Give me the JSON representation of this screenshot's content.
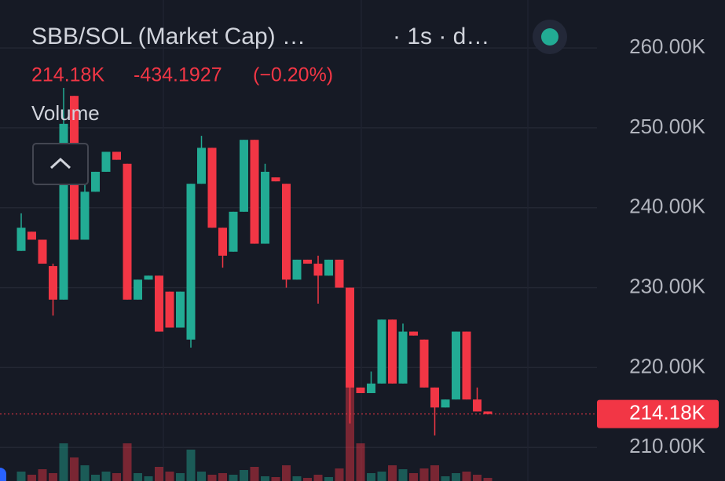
{
  "header": {
    "title": "SBB/SOL (Market Cap) …",
    "interval": "· 1s · d…",
    "price": "214.18K",
    "change": "-434.1927",
    "change_pct": "(−0.20%)",
    "volume_label": "Volume"
  },
  "chart_data": {
    "type": "candlestick",
    "ylim": [
      205.8,
      266.0
    ],
    "yticks": [
      {
        "value": 260,
        "label": "260.00K"
      },
      {
        "value": 250,
        "label": "250.00K"
      },
      {
        "value": 240,
        "label": "240.00K"
      },
      {
        "value": 230,
        "label": "230.00K"
      },
      {
        "value": 220,
        "label": "220.00K"
      },
      {
        "value": 210,
        "label": "210.00K"
      }
    ],
    "grid": true,
    "up_color": "#22ab94",
    "down_color": "#f23645",
    "last_price": {
      "value": 214.18,
      "label": "214.18K"
    },
    "series": [
      {
        "open": [
          234.6,
          237.0,
          236.0,
          232.7,
          228.5,
          254.0,
          236.0,
          242.0,
          244.5,
          247.0,
          245.5,
          228.5,
          231.0,
          231.5,
          229.5,
          225.0,
          223.5,
          243.0,
          247.5,
          237.5,
          234.5,
          239.5,
          248.5,
          235.5,
          243.8,
          243.0,
          231.0,
          233.5,
          233.0,
          231.5,
          233.5,
          230.0,
          217.5,
          216.8,
          218.0,
          226.0,
          218.0,
          224.5,
          223.5,
          217.5,
          215.0,
          216.0,
          224.5,
          216.0,
          214.5
        ],
        "high": [
          239.3,
          237.0,
          236.0,
          233.0,
          255.0,
          254.0,
          243.0,
          244.5,
          247.0,
          247.0,
          245.5,
          231.0,
          231.5,
          231.5,
          229.5,
          229.5,
          243.0,
          249.0,
          247.5,
          237.5,
          239.5,
          248.5,
          248.5,
          245.5,
          243.8,
          243.0,
          233.5,
          233.5,
          234.0,
          233.5,
          233.5,
          230.0,
          217.5,
          219.5,
          226.0,
          226.0,
          225.5,
          224.5,
          223.5,
          217.5,
          216.0,
          224.5,
          224.5,
          217.5,
          214.5
        ],
        "low": [
          234.6,
          236.0,
          233.0,
          226.5,
          228.5,
          236.0,
          236.0,
          242.0,
          244.5,
          246.0,
          228.5,
          228.5,
          231.0,
          224.5,
          225.0,
          225.0,
          222.5,
          243.0,
          237.5,
          232.5,
          234.5,
          239.5,
          235.5,
          235.5,
          243.3,
          230.0,
          231.0,
          233.0,
          228.0,
          231.5,
          230.0,
          213.0,
          216.8,
          216.8,
          218.0,
          218.0,
          218.0,
          224.0,
          217.5,
          211.5,
          215.0,
          216.0,
          216.0,
          214.5,
          214.18
        ],
        "close": [
          237.5,
          236.0,
          233.0,
          228.5,
          250.5,
          236.0,
          242.0,
          244.5,
          247.0,
          246.0,
          228.5,
          231.0,
          231.5,
          224.5,
          225.0,
          229.5,
          243.0,
          247.5,
          237.5,
          234.0,
          239.5,
          248.5,
          235.5,
          244.5,
          243.3,
          231.0,
          233.5,
          233.0,
          231.5,
          233.5,
          230.0,
          217.5,
          216.8,
          218.0,
          226.0,
          218.0,
          224.5,
          224.0,
          217.5,
          215.0,
          216.0,
          224.5,
          216.0,
          214.5,
          214.18
        ],
        "volume": [
          12,
          8,
          15,
          10,
          48,
          30,
          20,
          8,
          12,
          10,
          48,
          10,
          6,
          18,
          12,
          10,
          40,
          12,
          8,
          10,
          8,
          14,
          18,
          6,
          5,
          20,
          6,
          4,
          8,
          5,
          16,
          130,
          48,
          10,
          12,
          20,
          15,
          10,
          16,
          20,
          6,
          10,
          12,
          8,
          4
        ]
      }
    ]
  }
}
